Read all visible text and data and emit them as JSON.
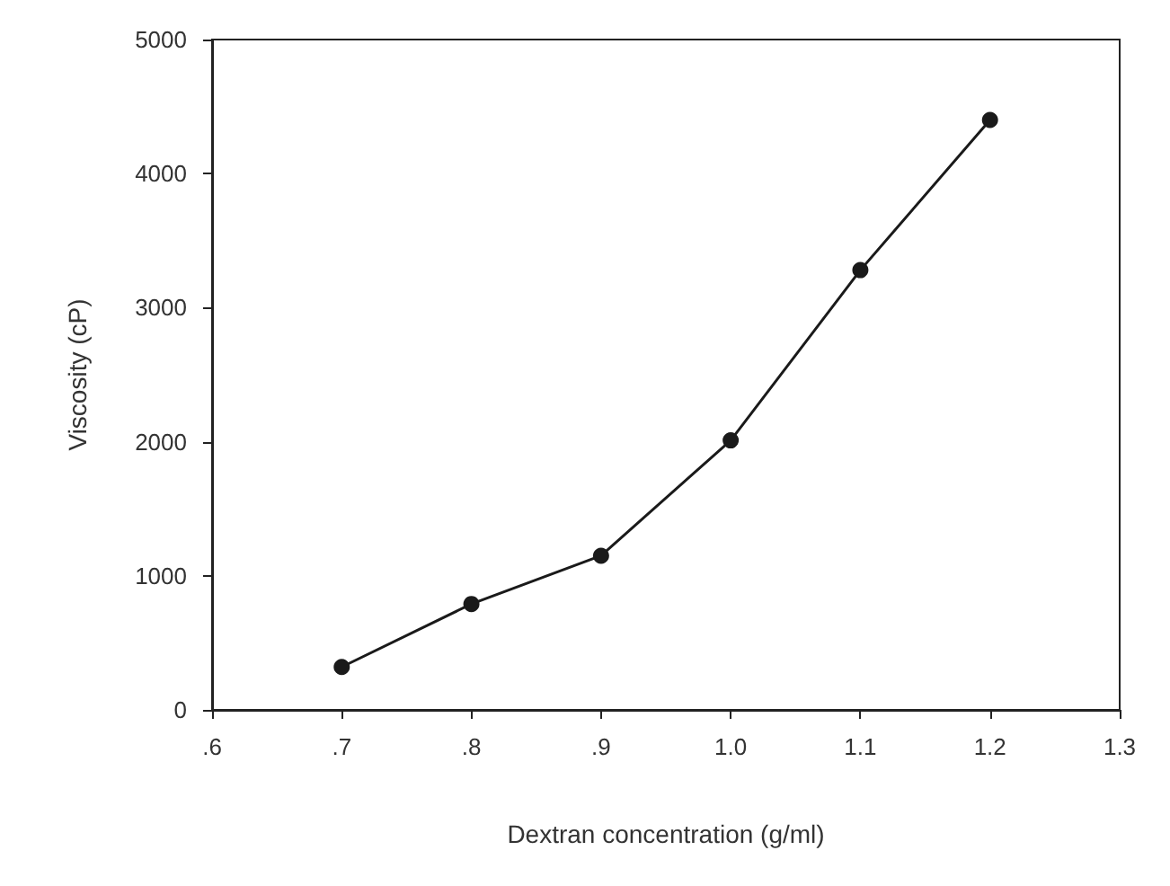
{
  "chart_data": {
    "type": "line",
    "xlabel": "Dextran concentration (g/ml)",
    "ylabel": "Viscosity (cP)",
    "x": [
      0.7,
      0.8,
      0.9,
      1.0,
      1.1,
      1.2
    ],
    "series": [
      {
        "color": "#1a1a1a",
        "values": [
          320,
          790,
          1150,
          2010,
          3280,
          4400
        ]
      }
    ],
    "xlim": [
      0.6,
      1.3
    ],
    "xticks": [
      {
        "value": 0.6,
        "label": ".6"
      },
      {
        "value": 0.7,
        "label": ".7"
      },
      {
        "value": 0.8,
        "label": ".8"
      },
      {
        "value": 0.9,
        "label": ".9"
      },
      {
        "value": 1.0,
        "label": "1.0"
      },
      {
        "value": 1.1,
        "label": "1.1"
      },
      {
        "value": 1.2,
        "label": "1.2"
      },
      {
        "value": 1.3,
        "label": "1.3"
      }
    ],
    "ylim": [
      0,
      5000
    ],
    "yticks": [
      0,
      1000,
      2000,
      3000,
      4000,
      5000
    ],
    "grid": false,
    "marker": "circle",
    "line_style": "solid"
  }
}
